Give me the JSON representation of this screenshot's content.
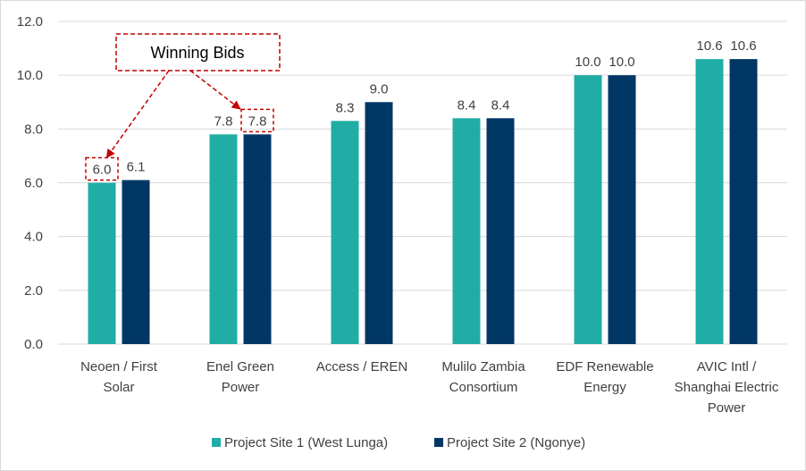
{
  "chart_data": {
    "type": "bar",
    "categories": [
      [
        "Neoen / First",
        "Solar"
      ],
      [
        "Enel Green",
        "Power"
      ],
      [
        "Access /  EREN"
      ],
      [
        "Mulilo Zambia",
        "Consortium"
      ],
      [
        "EDF Renewable",
        "Energy"
      ],
      [
        "AVIC Intl /",
        "Shanghai Electric",
        "Power"
      ]
    ],
    "series": [
      {
        "name": "Project Site 1 (West Lunga)",
        "values": [
          6.0,
          7.8,
          8.3,
          8.4,
          10.0,
          10.6
        ],
        "color": "#20ADA5"
      },
      {
        "name": "Project Site 2 (Ngonye)",
        "values": [
          6.1,
          7.8,
          9.0,
          8.4,
          10.0,
          10.6
        ],
        "color": "#003764"
      }
    ],
    "data_labels": [
      [
        "6.0",
        "7.8",
        "8.3",
        "8.4",
        "10.0",
        "10.6"
      ],
      [
        "6.1",
        "7.8",
        "9.0",
        "8.4",
        "10.0",
        "10.6"
      ]
    ],
    "ylim": [
      0,
      12
    ],
    "yticks": [
      "0.0",
      "2.0",
      "4.0",
      "6.0",
      "8.0",
      "10.0",
      "12.0"
    ],
    "grid": true,
    "legend_position": "bottom",
    "annotation": {
      "text": "Winning Bids",
      "color": "#C00000",
      "targets": [
        [
          0,
          0
        ],
        [
          1,
          1
        ]
      ]
    },
    "title": "",
    "xlabel": "",
    "ylabel": ""
  }
}
